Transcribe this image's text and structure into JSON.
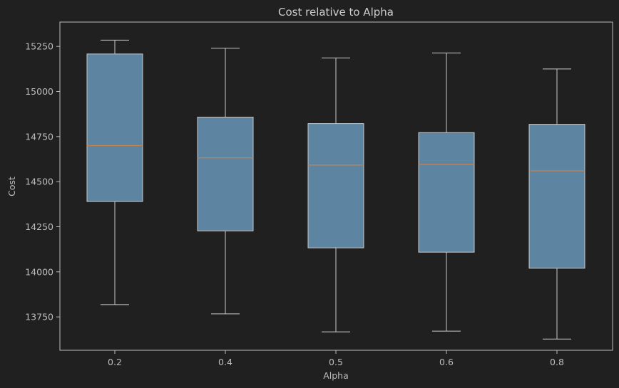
{
  "chart_data": {
    "type": "box",
    "title": "Cost relative to Alpha",
    "xlabel": "Alpha",
    "ylabel": "Cost",
    "categories": [
      "0.2",
      "0.4",
      "0.5",
      "0.6",
      "0.8"
    ],
    "boxes": [
      {
        "category": "0.2",
        "whisker_low": 13818,
        "q1": 14390,
        "median": 14700,
        "q3": 15208,
        "whisker_high": 15285
      },
      {
        "category": "0.4",
        "whisker_low": 13767,
        "q1": 14227,
        "median": 14632,
        "q3": 14858,
        "whisker_high": 15240
      },
      {
        "category": "0.5",
        "whisker_low": 13667,
        "q1": 14133,
        "median": 14592,
        "q3": 14822,
        "whisker_high": 15186
      },
      {
        "category": "0.6",
        "whisker_low": 13671,
        "q1": 14109,
        "median": 14596,
        "q3": 14772,
        "whisker_high": 15214
      },
      {
        "category": "0.8",
        "whisker_low": 13627,
        "q1": 14020,
        "median": 14560,
        "q3": 14818,
        "whisker_high": 15125
      }
    ],
    "yticks": [
      13750,
      14000,
      14250,
      14500,
      14750,
      15000,
      15250
    ],
    "ylim": [
      13565,
      15385
    ],
    "grid": false,
    "colors": {
      "background": "#202020",
      "box_fill": "#5d85a2",
      "box_edge": "#c9c9c9",
      "median": "#c8824e",
      "whisker": "#c9c9c9",
      "axis": "#bdbdbd",
      "text": "#bdbdbd"
    }
  }
}
